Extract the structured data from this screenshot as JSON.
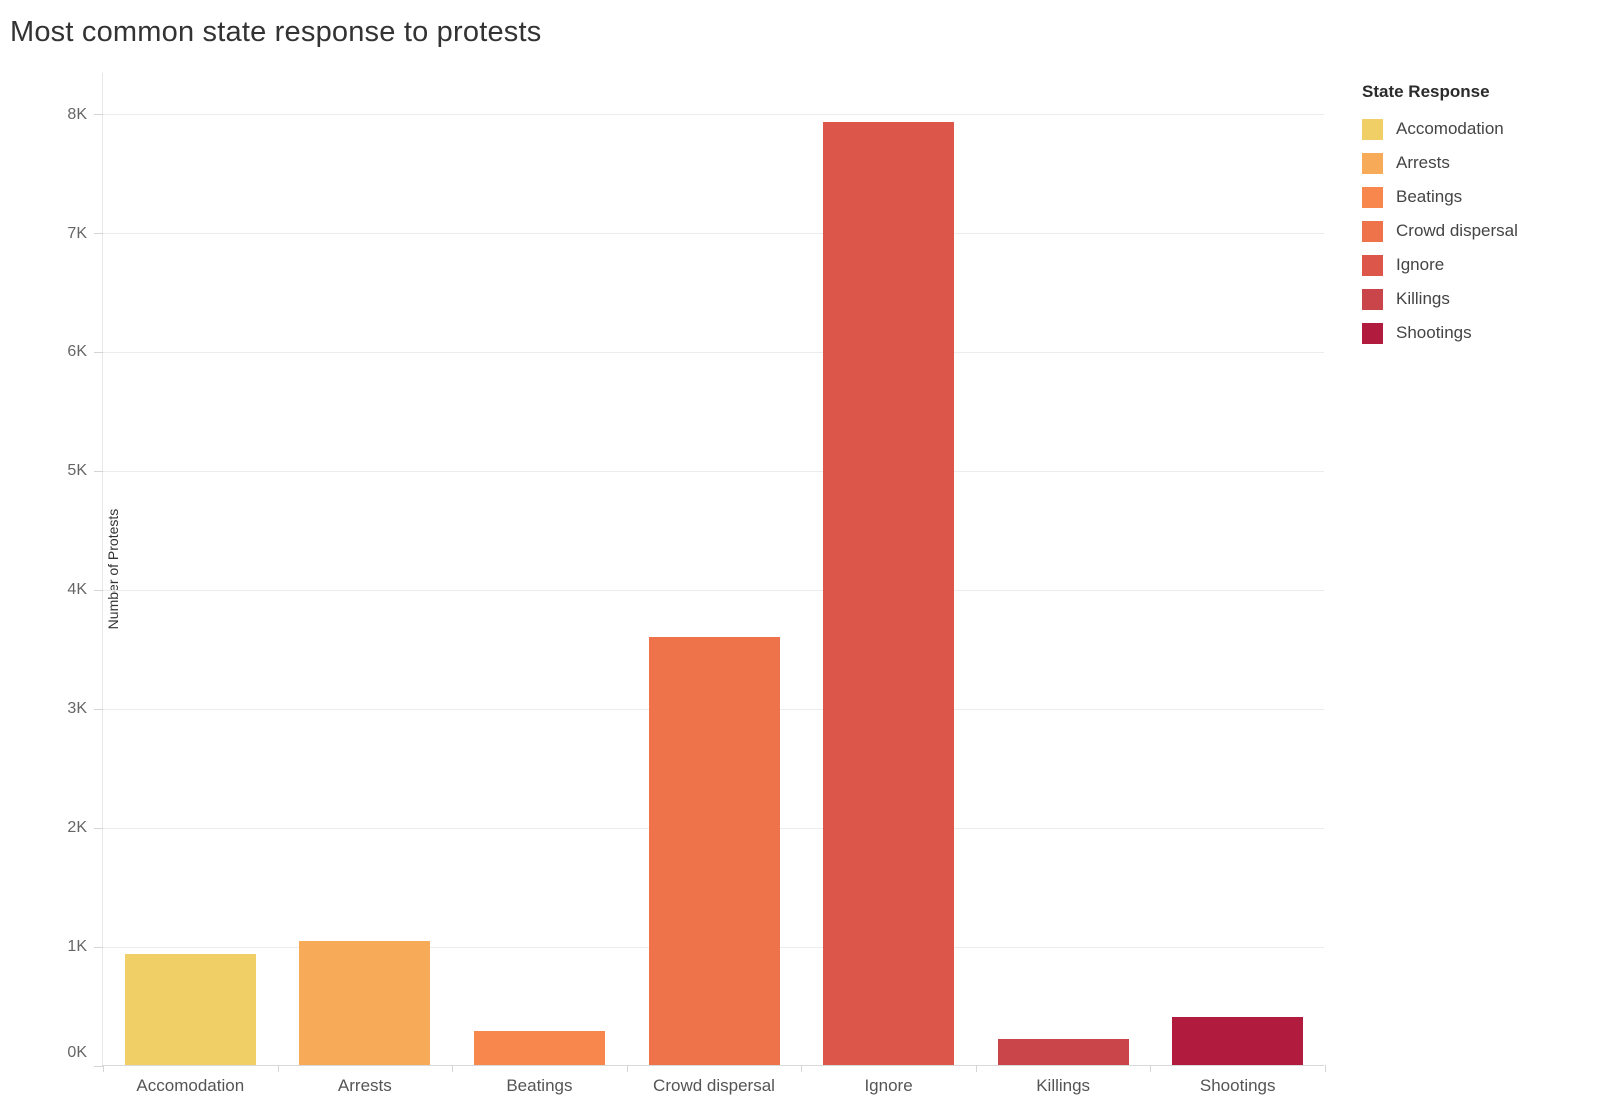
{
  "page": {
    "title": "Most common state response to protests"
  },
  "chart_data": {
    "type": "bar",
    "title": "Most common state response to protests",
    "xlabel": "",
    "ylabel": "Number of Protests",
    "categories": [
      "Accomodation",
      "Arrests",
      "Beatings",
      "Crowd dispersal",
      "Ignore",
      "Killings",
      "Shootings"
    ],
    "values": [
      930,
      1040,
      290,
      3600,
      7930,
      220,
      400
    ],
    "colors": [
      "#EFCF66",
      "#F7AB58",
      "#F8874E",
      "#EE724A",
      "#DC5749",
      "#C94549",
      "#B01B3E"
    ],
    "ylim": [
      0,
      8350
    ],
    "y_tick_step": 1000,
    "y_ticks": [
      "0K",
      "1K",
      "2K",
      "3K",
      "4K",
      "5K",
      "6K",
      "7K",
      "8K"
    ],
    "grid": true,
    "legend": {
      "title": "State Response",
      "position": "right",
      "entries": [
        {
          "label": "Accomodation",
          "color": "#EFCF66"
        },
        {
          "label": "Arrests",
          "color": "#F7AB58"
        },
        {
          "label": "Beatings",
          "color": "#F8874E"
        },
        {
          "label": "Crowd dispersal",
          "color": "#EE724A"
        },
        {
          "label": "Ignore",
          "color": "#DC5749"
        },
        {
          "label": "Killings",
          "color": "#C94549"
        },
        {
          "label": "Shootings",
          "color": "#B01B3E"
        }
      ]
    }
  }
}
